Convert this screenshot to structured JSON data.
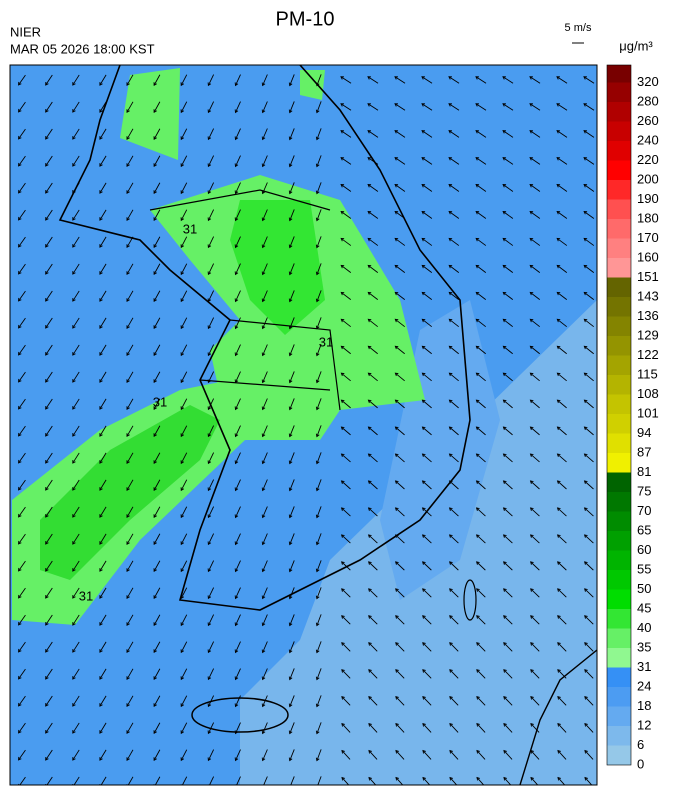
{
  "header": {
    "title": "PM-10",
    "agency": "NIER",
    "timestamp": "MAR 05 2026 18:00 KST",
    "wind_reference": "5 m/s",
    "unit": "μg/m³"
  },
  "map": {
    "contour_labels": [
      "31",
      "31",
      "31",
      "31"
    ]
  },
  "colorbar": {
    "levels": [
      "0",
      "6",
      "12",
      "18",
      "24",
      "31",
      "35",
      "40",
      "45",
      "50",
      "55",
      "60",
      "65",
      "70",
      "75",
      "81",
      "87",
      "94",
      "101",
      "108",
      "115",
      "122",
      "129",
      "136",
      "143",
      "151",
      "160",
      "170",
      "180",
      "190",
      "200",
      "220",
      "240",
      "260",
      "280",
      "320"
    ],
    "colors": [
      "#95c8e8",
      "#7db9ec",
      "#64aaf0",
      "#4c9cf2",
      "#3590f5",
      "#90f890",
      "#66f066",
      "#33e633",
      "#00dd00",
      "#00c800",
      "#00b400",
      "#00a000",
      "#008c00",
      "#007800",
      "#006400",
      "#f0f000",
      "#e0e000",
      "#d0d000",
      "#c4c400",
      "#b4b400",
      "#a4a400",
      "#949400",
      "#848400",
      "#747400",
      "#646400",
      "#ff9696",
      "#ff8080",
      "#ff6a6a",
      "#ff5050",
      "#ff2828",
      "#ff0000",
      "#e00000",
      "#c80000",
      "#b00000",
      "#960000",
      "#780000"
    ]
  }
}
